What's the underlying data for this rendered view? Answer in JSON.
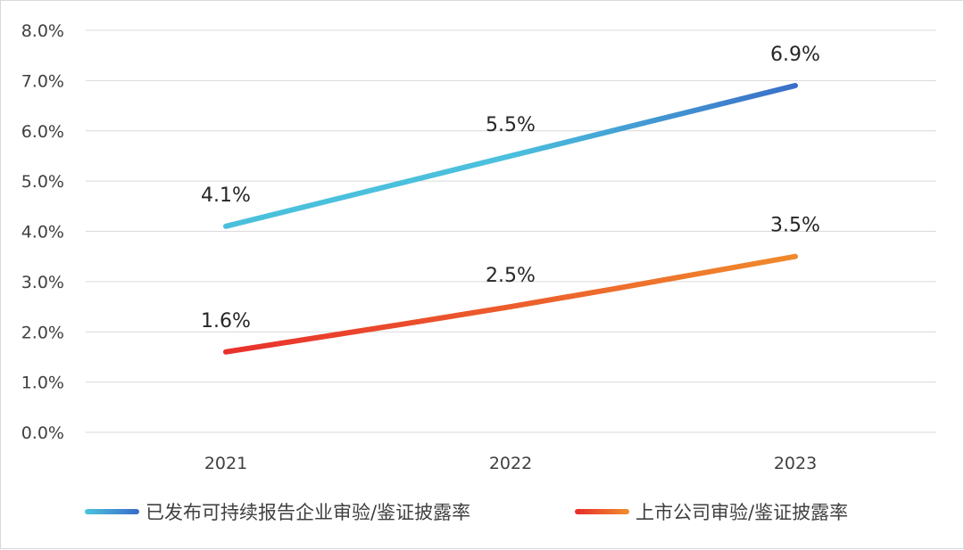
{
  "chart_data": {
    "type": "line",
    "title": "",
    "xlabel": "",
    "ylabel": "",
    "categories": [
      "2021",
      "2022",
      "2023"
    ],
    "ylim": [
      0,
      8
    ],
    "yticks": [
      "0.0%",
      "1.0%",
      "2.0%",
      "3.0%",
      "4.0%",
      "5.0%",
      "6.0%",
      "7.0%",
      "8.0%"
    ],
    "grid": "horizontal",
    "legend_position": "bottom",
    "series": [
      {
        "name": "已发布可持续报告企业审验/鉴证披露率",
        "values": [
          4.1,
          5.5,
          6.9
        ],
        "labels": [
          "4.1%",
          "5.5%",
          "6.9%"
        ],
        "color_start": "#4bc0dc",
        "color_end": "#3a6fc9"
      },
      {
        "name": "上市公司审验/鉴证披露率",
        "values": [
          1.6,
          2.5,
          3.5
        ],
        "labels": [
          "1.6%",
          "2.5%",
          "3.5%"
        ],
        "color_start": "#e8302c",
        "color_end": "#f08a2c"
      }
    ]
  }
}
